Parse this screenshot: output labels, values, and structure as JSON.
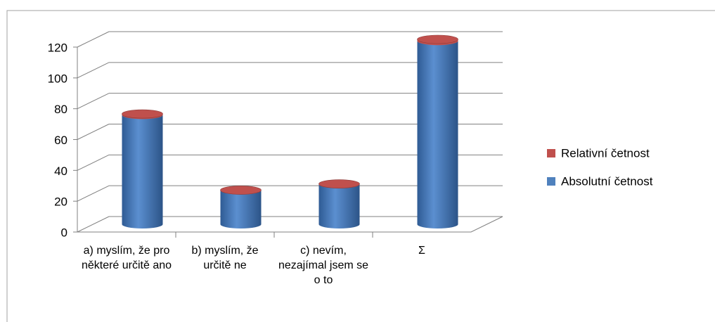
{
  "chart_data": {
    "type": "bar3d_stacked_cylinder",
    "categories": [
      "a) myslím, že pro některé určitě ano",
      "b) myslím, že určitě ne",
      "c) nevím, nezajímal jsem se o to",
      "Σ"
    ],
    "series": [
      {
        "name": "Absolutní četnost",
        "color": "#4f81bd",
        "values": [
          71,
          22,
          26,
          119
        ]
      },
      {
        "name": "Relativní četnost",
        "color": "#c0504d",
        "values": [
          0.6,
          0.18,
          0.22,
          1
        ]
      }
    ],
    "ylim": [
      0,
      120
    ],
    "yticks": [
      0,
      20,
      40,
      60,
      80,
      100,
      120
    ],
    "grid": true,
    "legend": "right"
  }
}
